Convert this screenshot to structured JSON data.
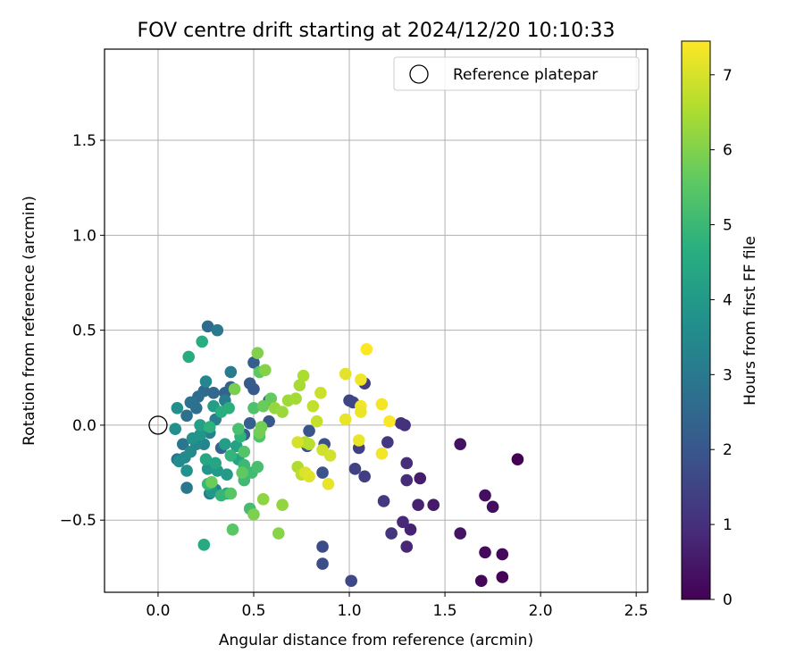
{
  "chart_data": {
    "type": "scatter",
    "title": "FOV centre drift starting at 2024/12/20 10:10:33",
    "xlabel": "Angular distance from reference (arcmin)",
    "ylabel": "Rotation from reference (arcmin)",
    "xlim": [
      -0.28,
      2.56
    ],
    "ylim": [
      -0.88,
      1.98
    ],
    "xticks": [
      0.0,
      0.5,
      1.0,
      1.5,
      2.0,
      2.5
    ],
    "xtick_labels": [
      "0.0",
      "0.5",
      "1.0",
      "1.5",
      "2.0",
      "2.5"
    ],
    "yticks": [
      -0.5,
      0.0,
      0.5,
      1.0,
      1.5
    ],
    "ytick_labels": [
      "−0.5",
      "0.0",
      "0.5",
      "1.0",
      "1.5"
    ],
    "grid": true,
    "legend": {
      "placement": "upper right",
      "label": "Reference platepar"
    },
    "reference_point": {
      "x": 0.0,
      "y": 0.0
    },
    "colorbar": {
      "label": "Hours from first FF file",
      "range": [
        0,
        7.45
      ],
      "ticks": [
        0,
        1,
        2,
        3,
        4,
        5,
        6,
        7
      ],
      "tick_labels": [
        "0",
        "1",
        "2",
        "3",
        "4",
        "5",
        "6",
        "7"
      ],
      "colormap": "viridis"
    },
    "points": [
      [
        1.88,
        -0.18,
        0.0
      ],
      [
        1.8,
        -0.8,
        0.05
      ],
      [
        1.69,
        -0.82,
        0.1
      ],
      [
        1.8,
        -0.68,
        0.15
      ],
      [
        1.71,
        -0.67,
        0.2
      ],
      [
        1.75,
        -0.43,
        0.25
      ],
      [
        1.71,
        -0.37,
        0.3
      ],
      [
        1.58,
        -0.1,
        0.35
      ],
      [
        1.58,
        -0.57,
        0.4
      ],
      [
        1.44,
        -0.42,
        0.5
      ],
      [
        1.37,
        -0.28,
        0.6
      ],
      [
        1.36,
        -0.42,
        0.7
      ],
      [
        1.32,
        -0.55,
        0.75
      ],
      [
        1.3,
        -0.64,
        0.8
      ],
      [
        1.28,
        -0.51,
        0.85
      ],
      [
        1.3,
        -0.29,
        0.9
      ],
      [
        1.3,
        -0.2,
        0.95
      ],
      [
        1.29,
        0.0,
        1.0
      ],
      [
        1.27,
        0.01,
        1.05
      ],
      [
        1.22,
        -0.57,
        1.1
      ],
      [
        1.2,
        -0.09,
        1.15
      ],
      [
        1.18,
        -0.4,
        1.2
      ],
      [
        1.08,
        0.22,
        1.3
      ],
      [
        1.08,
        -0.27,
        1.35
      ],
      [
        1.05,
        -0.12,
        1.4
      ],
      [
        1.03,
        -0.23,
        1.45
      ],
      [
        1.0,
        0.13,
        1.5
      ],
      [
        1.02,
        0.12,
        1.55
      ],
      [
        1.01,
        -0.82,
        1.6
      ],
      [
        0.86,
        -0.64,
        1.7
      ],
      [
        0.86,
        -0.73,
        1.75
      ],
      [
        0.87,
        -0.1,
        1.8
      ],
      [
        0.86,
        -0.25,
        1.85
      ],
      [
        0.78,
        -0.11,
        1.9
      ],
      [
        0.79,
        -0.03,
        1.95
      ],
      [
        0.58,
        0.13,
        2.0
      ],
      [
        0.58,
        0.02,
        2.05
      ],
      [
        0.5,
        0.19,
        2.1
      ],
      [
        0.48,
        0.22,
        2.15
      ],
      [
        0.5,
        0.33,
        2.2
      ],
      [
        0.48,
        0.01,
        2.25
      ],
      [
        0.45,
        -0.05,
        2.3
      ],
      [
        0.38,
        0.2,
        2.35
      ],
      [
        0.35,
        0.17,
        2.4
      ],
      [
        0.33,
        -0.12,
        2.45
      ],
      [
        0.29,
        0.17,
        2.5
      ],
      [
        0.26,
        0.52,
        2.55
      ],
      [
        0.24,
        0.18,
        2.6
      ],
      [
        0.21,
        0.15,
        2.65
      ],
      [
        0.2,
        0.09,
        2.7
      ],
      [
        0.15,
        0.05,
        2.75
      ],
      [
        0.17,
        0.12,
        2.8
      ],
      [
        0.1,
        -0.18,
        2.85
      ],
      [
        0.13,
        -0.1,
        2.9
      ],
      [
        0.15,
        -0.33,
        2.95
      ],
      [
        0.31,
        0.5,
        3.0
      ],
      [
        0.38,
        0.28,
        3.05
      ],
      [
        0.35,
        0.13,
        3.1
      ],
      [
        0.3,
        0.03,
        3.15
      ],
      [
        0.27,
        -0.04,
        3.2
      ],
      [
        0.27,
        -0.36,
        3.25
      ],
      [
        0.3,
        -0.34,
        3.3
      ],
      [
        0.24,
        -0.1,
        3.35
      ],
      [
        0.25,
        0.23,
        3.4
      ],
      [
        0.2,
        -0.1,
        3.45
      ],
      [
        0.17,
        -0.14,
        3.5
      ],
      [
        0.14,
        -0.17,
        3.55
      ],
      [
        0.11,
        -0.19,
        3.6
      ],
      [
        0.09,
        -0.02,
        3.65
      ],
      [
        0.1,
        0.09,
        3.7
      ],
      [
        0.15,
        -0.24,
        3.75
      ],
      [
        0.18,
        -0.07,
        3.8
      ],
      [
        0.22,
        -0.05,
        3.85
      ],
      [
        0.26,
        -0.23,
        3.9
      ],
      [
        0.28,
        -0.35,
        3.95
      ],
      [
        0.31,
        -0.24,
        4.0
      ],
      [
        0.36,
        -0.26,
        4.05
      ],
      [
        0.29,
        0.1,
        4.1
      ],
      [
        0.35,
        -0.1,
        4.15
      ],
      [
        0.22,
        0.0,
        4.2
      ],
      [
        0.41,
        -0.11,
        4.25
      ],
      [
        0.42,
        -0.18,
        4.3
      ],
      [
        0.3,
        -0.2,
        4.35
      ],
      [
        0.25,
        -0.18,
        4.4
      ],
      [
        0.36,
        -0.36,
        4.45
      ],
      [
        0.24,
        -0.63,
        4.5
      ],
      [
        0.16,
        0.36,
        4.55
      ],
      [
        0.23,
        0.44,
        4.6
      ],
      [
        0.33,
        0.07,
        4.65
      ],
      [
        0.37,
        0.09,
        4.7
      ],
      [
        0.27,
        -0.01,
        4.75
      ],
      [
        0.43,
        -0.06,
        4.8
      ],
      [
        0.38,
        -0.16,
        4.85
      ],
      [
        0.33,
        -0.37,
        4.9
      ],
      [
        0.26,
        -0.31,
        4.95
      ],
      [
        0.45,
        -0.21,
        5.0
      ],
      [
        0.45,
        -0.29,
        5.05
      ],
      [
        0.49,
        -0.25,
        5.1
      ],
      [
        0.48,
        -0.44,
        5.15
      ],
      [
        0.52,
        -0.22,
        5.2
      ],
      [
        0.42,
        -0.02,
        5.25
      ],
      [
        0.5,
        0.09,
        5.3
      ],
      [
        0.53,
        -0.06,
        5.35
      ],
      [
        0.45,
        -0.14,
        5.4
      ],
      [
        0.38,
        -0.36,
        5.45
      ],
      [
        0.39,
        -0.55,
        5.5
      ],
      [
        0.53,
        0.28,
        5.55
      ],
      [
        0.44,
        -0.25,
        5.6
      ],
      [
        0.59,
        0.14,
        5.65
      ],
      [
        0.55,
        0.1,
        5.7
      ],
      [
        0.28,
        -0.3,
        5.75
      ],
      [
        0.53,
        -0.04,
        5.8
      ],
      [
        0.54,
        -0.01,
        5.85
      ],
      [
        0.4,
        0.19,
        5.9
      ],
      [
        0.5,
        -0.47,
        5.95
      ],
      [
        0.52,
        0.38,
        6.0
      ],
      [
        0.56,
        0.29,
        6.05
      ],
      [
        0.63,
        -0.57,
        6.1
      ],
      [
        0.55,
        -0.39,
        6.15
      ],
      [
        0.65,
        -0.42,
        6.2
      ],
      [
        0.61,
        0.09,
        6.25
      ],
      [
        0.65,
        0.07,
        6.3
      ],
      [
        0.68,
        0.13,
        6.35
      ],
      [
        0.72,
        0.14,
        6.4
      ],
      [
        0.74,
        0.21,
        6.45
      ],
      [
        0.76,
        0.26,
        6.5
      ],
      [
        0.73,
        -0.22,
        6.55
      ],
      [
        0.77,
        -0.09,
        6.6
      ],
      [
        0.79,
        -0.1,
        6.65
      ],
      [
        0.75,
        -0.26,
        6.7
      ],
      [
        0.81,
        0.1,
        6.75
      ],
      [
        0.83,
        0.02,
        6.8
      ],
      [
        0.85,
        0.17,
        6.85
      ],
      [
        0.86,
        -0.13,
        6.9
      ],
      [
        0.9,
        -0.16,
        6.95
      ],
      [
        0.73,
        -0.09,
        7.0
      ],
      [
        0.77,
        -0.25,
        7.05
      ],
      [
        0.79,
        -0.27,
        7.1
      ],
      [
        0.98,
        0.27,
        7.15
      ],
      [
        0.98,
        0.03,
        7.2
      ],
      [
        1.05,
        -0.08,
        7.25
      ],
      [
        1.06,
        0.1,
        7.3
      ],
      [
        1.09,
        0.4,
        7.45
      ],
      [
        1.17,
        0.11,
        7.35
      ],
      [
        1.21,
        0.02,
        7.4
      ],
      [
        1.17,
        -0.15,
        7.35
      ],
      [
        0.89,
        -0.31,
        7.2
      ],
      [
        1.06,
        0.24,
        7.3
      ],
      [
        1.06,
        0.07,
        7.25
      ]
    ]
  }
}
